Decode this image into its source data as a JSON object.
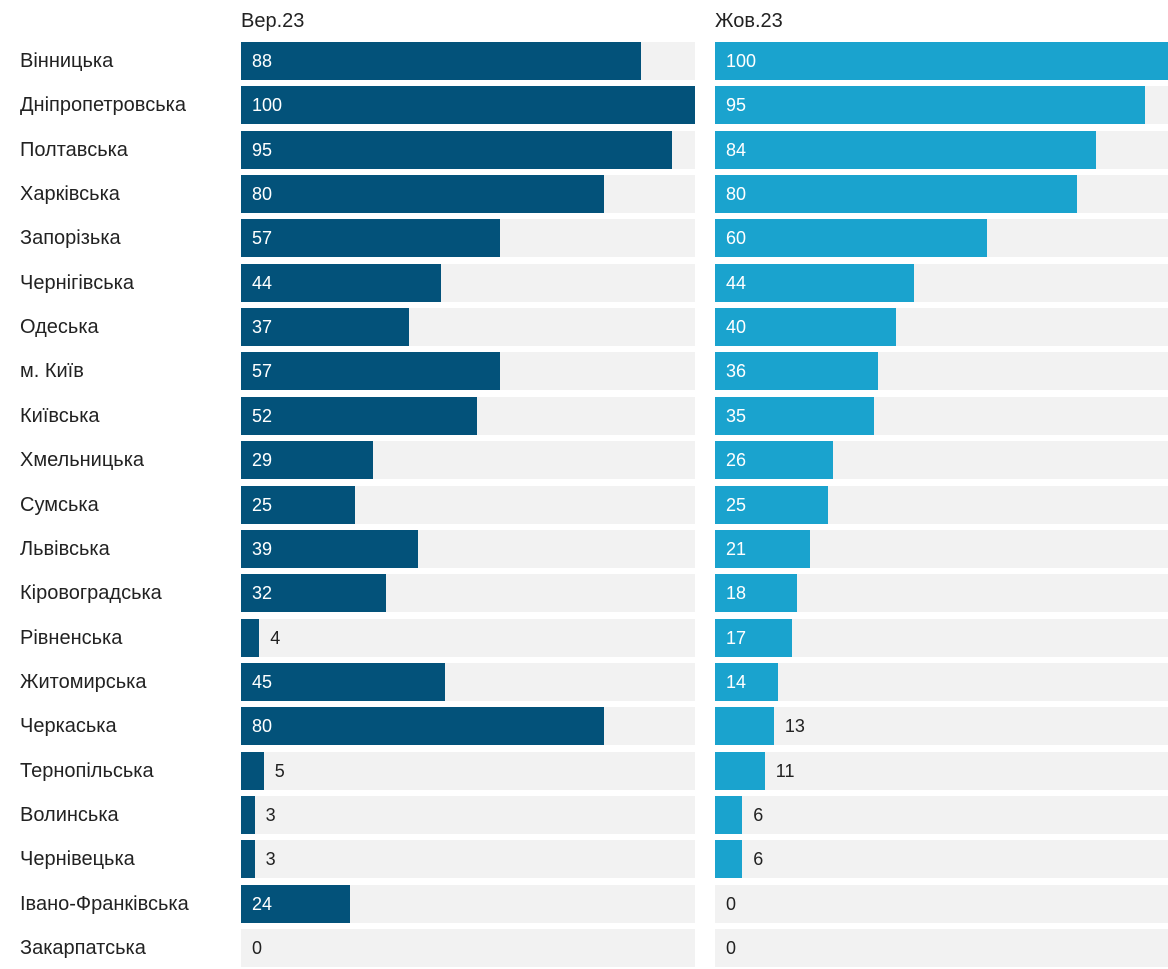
{
  "chart_data": {
    "type": "bar",
    "orientation": "horizontal",
    "grid": false,
    "categories": [
      "Вінницька",
      "Дніпропетровська",
      "Полтавська",
      "Харківська",
      "Запорізька",
      "Чернігівська",
      "Одеська",
      "м. Київ",
      "Київська",
      "Хмельницька",
      "Сумська",
      "Львівська",
      "Кіровоградська",
      "Рівненська",
      "Житомирська",
      "Черкаська",
      "Тернопільська",
      "Волинська",
      "Чернівецька",
      "Івано-Франківська",
      "Закарпатська"
    ],
    "series": [
      {
        "name": "Вер.23",
        "color": "#03527a",
        "xlim": [
          0,
          100
        ],
        "values": [
          88,
          100,
          95,
          80,
          57,
          44,
          37,
          57,
          52,
          29,
          25,
          39,
          32,
          4,
          45,
          80,
          5,
          3,
          3,
          24,
          0
        ]
      },
      {
        "name": "Жов.23",
        "color": "#1aa3ce",
        "xlim": [
          0,
          100
        ],
        "values": [
          100,
          95,
          84,
          80,
          60,
          44,
          40,
          36,
          35,
          26,
          25,
          21,
          18,
          17,
          14,
          13,
          11,
          6,
          6,
          0,
          0
        ]
      }
    ],
    "track_color": "#f2f2f2"
  }
}
